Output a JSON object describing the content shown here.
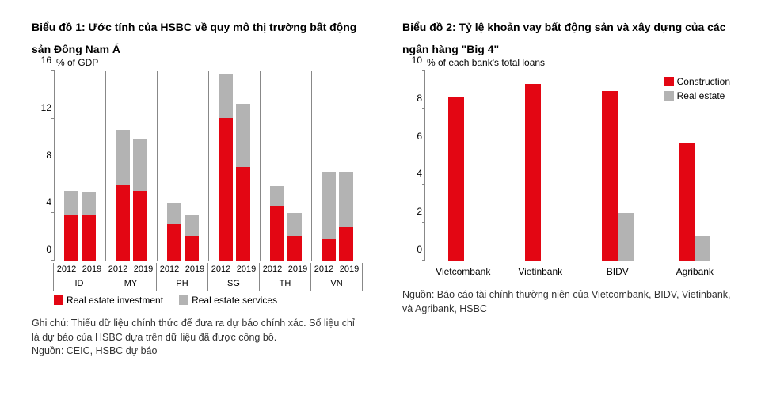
{
  "chart1": {
    "title": "Biểu đồ 1: Ước tính của HSBC về quy mô thị trường bất động sản Đông Nam Á",
    "type": "stacked-bar-grouped",
    "y_axis_label": "% of GDP",
    "ylim": [
      0,
      16
    ],
    "ytick_step": 4,
    "yticks": [
      0,
      4,
      8,
      12,
      16
    ],
    "countries": [
      "ID",
      "MY",
      "PH",
      "SG",
      "TH",
      "VN"
    ],
    "years": [
      "2012",
      "2019"
    ],
    "series": [
      {
        "name": "Real estate investment",
        "color": "#e30613"
      },
      {
        "name": "Real estate services",
        "color": "#b3b3b3"
      }
    ],
    "data": {
      "ID": {
        "2012": {
          "invest": 3.8,
          "services": 2.1
        },
        "2019": {
          "invest": 3.9,
          "services": 1.9
        }
      },
      "MY": {
        "2012": {
          "invest": 6.4,
          "services": 4.6
        },
        "2019": {
          "invest": 5.9,
          "services": 4.3
        }
      },
      "PH": {
        "2012": {
          "invest": 3.1,
          "services": 1.8
        },
        "2019": {
          "invest": 2.1,
          "services": 1.7
        }
      },
      "SG": {
        "2012": {
          "invest": 12.0,
          "services": 3.7
        },
        "2019": {
          "invest": 7.9,
          "services": 5.3
        }
      },
      "TH": {
        "2012": {
          "invest": 4.6,
          "services": 1.7
        },
        "2019": {
          "invest": 2.1,
          "services": 1.9
        }
      },
      "VN": {
        "2012": {
          "invest": 1.8,
          "services": 5.7
        },
        "2019": {
          "invest": 2.8,
          "services": 4.7
        }
      }
    },
    "legend_labels": {
      "invest": "Real estate investment",
      "services": "Real estate services"
    },
    "footnote": "Ghi chú: Thiếu dữ liệu chính thức để đưa ra dự báo chính xác. Số liệu chỉ là dự báo của HSBC dựa trên dữ liệu đã được công bố.",
    "source": "Nguồn: CEIC, HSBC dự báo",
    "background_color": "#ffffff",
    "axis_color": "#888888",
    "title_fontsize": 14,
    "label_fontsize": 12
  },
  "chart2": {
    "title": "Biểu đồ 2: Tỷ lệ khoản vay bất động sản và xây dựng của các ngân hàng \"Big 4\"",
    "type": "grouped-bar",
    "y_axis_label": "% of each bank's total loans",
    "ylim": [
      0,
      10
    ],
    "ytick_step": 2,
    "yticks": [
      0,
      2,
      4,
      6,
      8,
      10
    ],
    "banks": [
      "Vietcombank",
      "Vietinbank",
      "BIDV",
      "Agribank"
    ],
    "series": [
      {
        "name": "Construction",
        "key": "construction",
        "color": "#e30613"
      },
      {
        "name": "Real estate",
        "key": "real_estate",
        "color": "#b3b3b3"
      }
    ],
    "data": {
      "Vietcombank": {
        "construction": 8.6,
        "real_estate": 0.0
      },
      "Vietinbank": {
        "construction": 9.3,
        "real_estate": 0.0
      },
      "BIDV": {
        "construction": 8.9,
        "real_estate": 2.5
      },
      "Agribank": {
        "construction": 6.2,
        "real_estate": 1.3
      }
    },
    "source": "Nguồn: Báo cáo tài chính thường niên của Vietcombank, BIDV, Vietinbank, và Agribank, HSBC",
    "background_color": "#ffffff",
    "axis_color": "#888888",
    "title_fontsize": 14,
    "label_fontsize": 12
  }
}
